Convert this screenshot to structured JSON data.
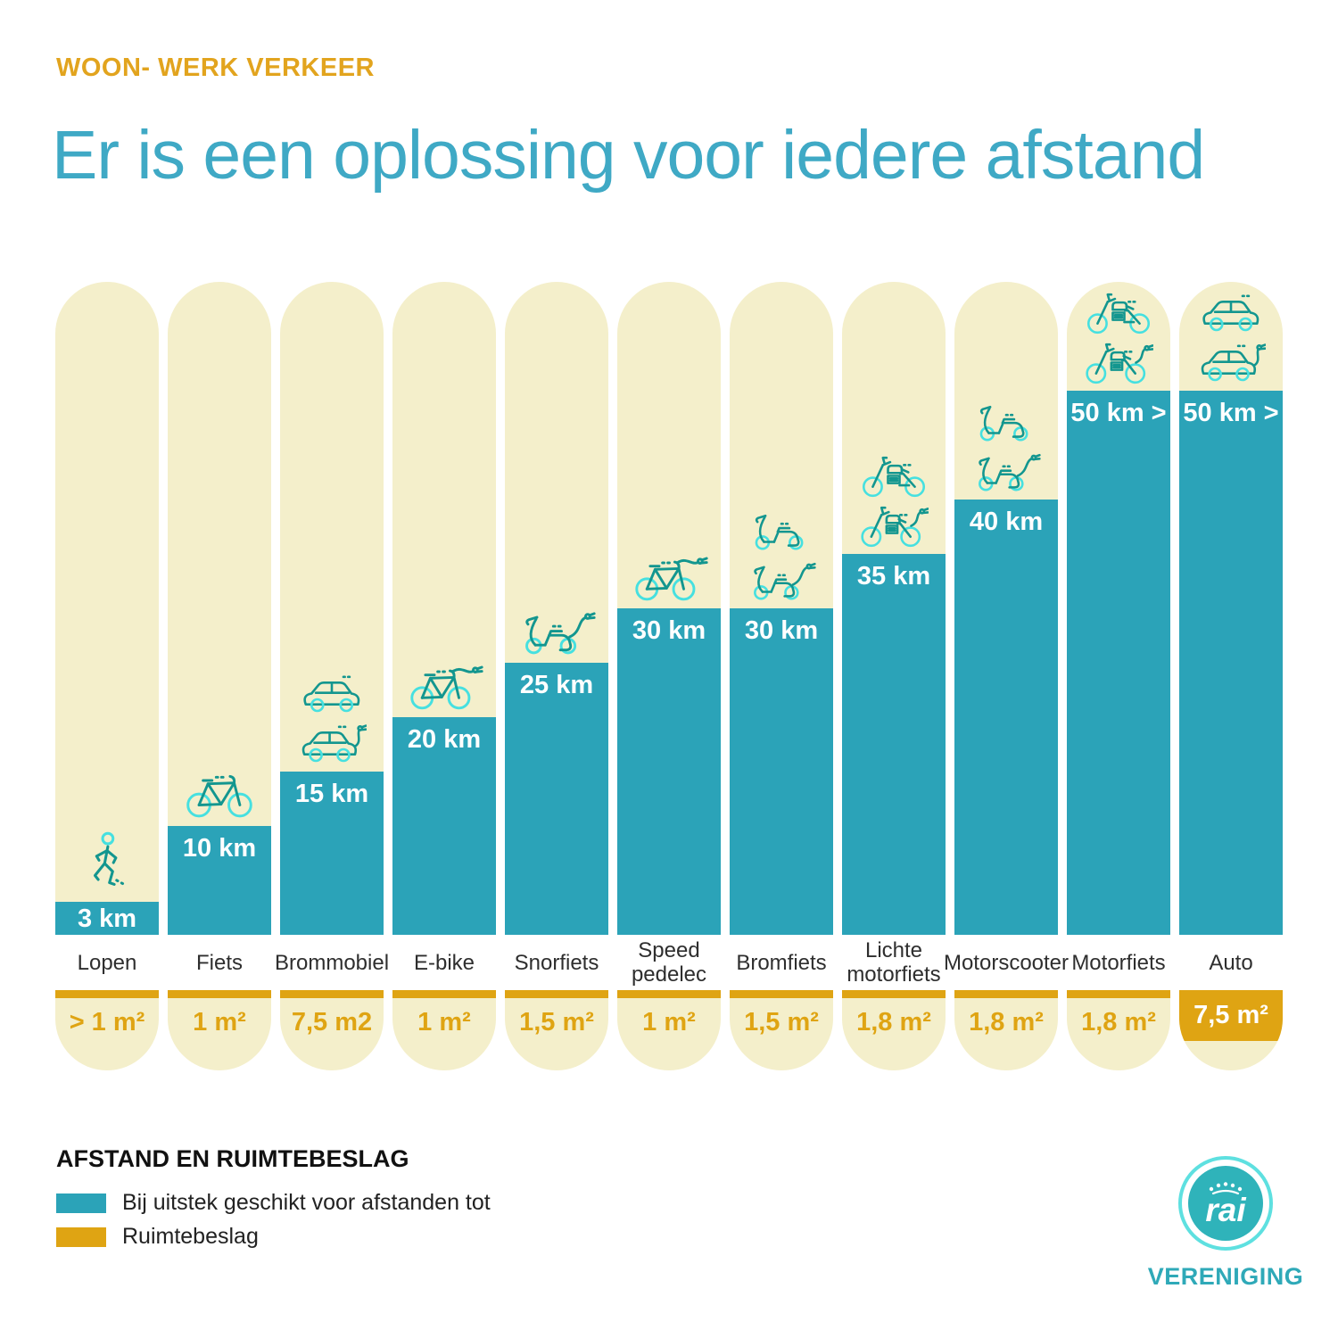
{
  "header": {
    "kicker": "WOON- WERK VERKEER",
    "title": "Er is een oplossing voor iedere afstand"
  },
  "chart_data": {
    "type": "bar",
    "title": "Er is een oplossing voor iedere afstand",
    "subtitle": "WOON- WERK VERKEER",
    "categories": [
      "Lopen",
      "Fiets",
      "Brommobiel",
      "E-bike",
      "Snorfiets",
      "Speed pedelec",
      "Bromfiets",
      "Lichte motorfiets",
      "Motorscooter",
      "Motorfiets",
      "Auto"
    ],
    "series": [
      {
        "name": "Bij uitstek geschikt voor afstanden tot",
        "unit": "km",
        "values": [
          3,
          10,
          15,
          20,
          25,
          30,
          30,
          35,
          40,
          50,
          50
        ],
        "labels": [
          "3 km",
          "10 km",
          "15 km",
          "20 km",
          "25 km",
          "30 km",
          "30 km",
          "35 km",
          "40 km",
          "50 km >",
          "50 km >"
        ],
        "color": "#2ba3b8"
      },
      {
        "name": "Ruimtebeslag",
        "unit": "m²",
        "values": [
          1,
          1,
          7.5,
          1,
          1.5,
          1,
          1.5,
          1.8,
          1.8,
          1.8,
          7.5
        ],
        "labels": [
          "> 1 m²",
          "1 m²",
          "7,5 m2",
          "1 m²",
          "1,5 m²",
          "1 m²",
          "1,5 m²",
          "1,8 m²",
          "1,8 m²",
          "1,8 m²",
          "7,5 m²"
        ],
        "color": "#dfa413"
      }
    ],
    "legend_position": "bottom-left",
    "grid": false
  },
  "columns": [
    {
      "label": "Lopen",
      "km_label": "3 km",
      "km_value": 3,
      "area_label": "> 1 m²",
      "area_highlight": false,
      "icons": [
        "walk"
      ]
    },
    {
      "label": "Fiets",
      "km_label": "10 km",
      "km_value": 10,
      "area_label": "1 m²",
      "area_highlight": false,
      "icons": [
        "bike"
      ]
    },
    {
      "label": "Brommobiel",
      "km_label": "15 km",
      "km_value": 15,
      "area_label": "7,5 m2",
      "area_highlight": false,
      "icons": [
        "car",
        "car-plug"
      ]
    },
    {
      "label": "E-bike",
      "km_label": "20 km",
      "km_value": 20,
      "area_label": "1 m²",
      "area_highlight": false,
      "icons": [
        "bike-plug"
      ]
    },
    {
      "label": "Snorfiets",
      "km_label": "25 km",
      "km_value": 25,
      "area_label": "1,5 m²",
      "area_highlight": false,
      "icons": [
        "scooter-plug"
      ]
    },
    {
      "label": "Speed pedelec",
      "km_label": "30 km",
      "km_value": 30,
      "area_label": "1 m²",
      "area_highlight": false,
      "icons": [
        "bike-plug"
      ]
    },
    {
      "label": "Bromfiets",
      "km_label": "30 km",
      "km_value": 30,
      "area_label": "1,5 m²",
      "area_highlight": false,
      "icons": [
        "scooter",
        "scooter-plug"
      ]
    },
    {
      "label": "Lichte motorfiets",
      "km_label": "35 km",
      "km_value": 35,
      "area_label": "1,8 m²",
      "area_highlight": false,
      "icons": [
        "moto",
        "moto-plug"
      ]
    },
    {
      "label": "Motorscooter",
      "km_label": "40 km",
      "km_value": 40,
      "area_label": "1,8 m²",
      "area_highlight": false,
      "icons": [
        "scooter",
        "scooter-plug"
      ]
    },
    {
      "label": "Motorfiets",
      "km_label": "50 km >",
      "km_value": 50,
      "area_label": "1,8 m²",
      "area_highlight": false,
      "icons": [
        "moto",
        "moto-plug"
      ]
    },
    {
      "label": "Auto",
      "km_label": "50 km >",
      "km_value": 50,
      "area_label": "7,5 m²",
      "area_highlight": true,
      "icons": [
        "car",
        "car-plug"
      ]
    }
  ],
  "legend": {
    "title": "AFSTAND EN RUIMTEBESLAG",
    "items": [
      {
        "label": "Bij uitstek geschikt voor afstanden tot",
        "color": "#2ba3b8"
      },
      {
        "label": "Ruimtebeslag",
        "color": "#dfa413"
      }
    ]
  },
  "logo": {
    "brand": "rai",
    "subtext": "VERENIGING"
  },
  "colors": {
    "bar_teal": "#2ba3b8",
    "cream": "#f4efcb",
    "gold": "#dfa413",
    "title_teal": "#3fa9c5",
    "kicker_gold": "#e2a41e",
    "icon_dark": "#13968f",
    "icon_cyan": "#46e0e0",
    "logo_teal": "#2fb3ba",
    "logo_ring": "#5ee0e0",
    "logo_text": "#2fa9b8",
    "label_dark": "#2e2e2e"
  }
}
